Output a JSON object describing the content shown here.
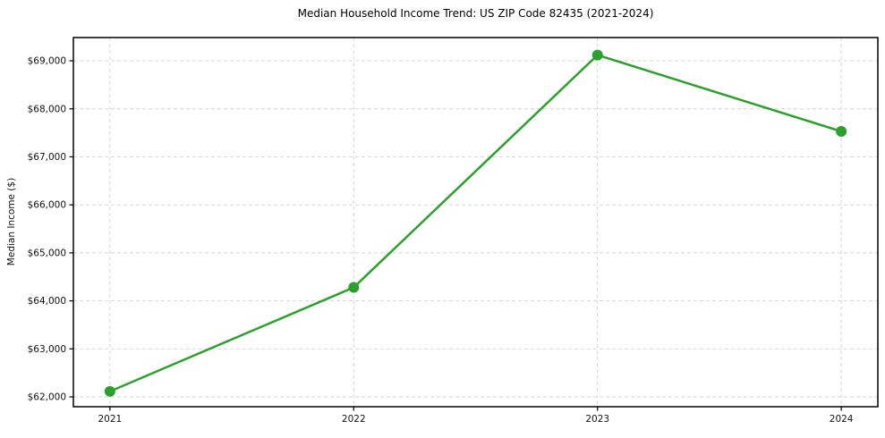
{
  "chart_data": {
    "type": "line",
    "title": "Median Household Income Trend: US ZIP Code 82435 (2021-2024)",
    "xlabel": "",
    "ylabel": "Median Income ($)",
    "x": [
      2021,
      2022,
      2023,
      2024
    ],
    "xtick_labels": [
      "2021",
      "2022",
      "2023",
      "2024"
    ],
    "values": [
      62115,
      64280,
      69120,
      67530
    ],
    "yticks": [
      62000,
      63000,
      64000,
      65000,
      66000,
      67000,
      68000,
      69000
    ],
    "ytick_labels": [
      "$62,000",
      "$63,000",
      "$64,000",
      "$65,000",
      "$66,000",
      "$67,000",
      "$68,000",
      "$69,000"
    ],
    "xlim": [
      2020.85,
      2024.15
    ],
    "ylim": [
      61795,
      69485
    ],
    "grid": true,
    "grid_style": "dashed",
    "legend": "none",
    "marker": "circle",
    "colors": {
      "line": "#2ca02c",
      "marker": "#2ca02c",
      "grid": "#d2d2d2",
      "spine": "#000000",
      "text": "#111111",
      "background": "#ffffff"
    }
  }
}
